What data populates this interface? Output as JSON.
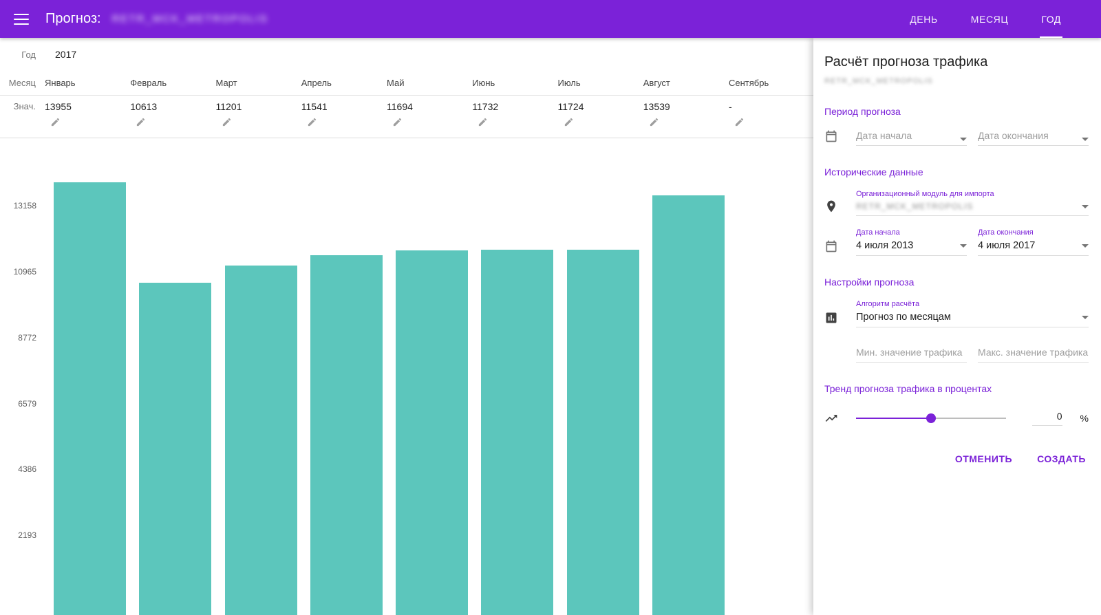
{
  "colors": {
    "primary": "#7B22D8",
    "bar": "#5CC6BC"
  },
  "app_bar": {
    "title": "Прогноз:",
    "title_blurred": "RETR_MCK_METROPOLIS",
    "tabs": [
      {
        "id": "day",
        "label": "ДЕНЬ",
        "active": false
      },
      {
        "id": "month",
        "label": "МЕСЯЦ",
        "active": false
      },
      {
        "id": "year",
        "label": "ГОД",
        "active": true
      }
    ]
  },
  "table": {
    "year_label": "Год",
    "year_value": "2017",
    "month_label": "Месяц",
    "value_label": "Знач.",
    "months": [
      "Январь",
      "Февраль",
      "Март",
      "Апрель",
      "Май",
      "Июнь",
      "Июль",
      "Август",
      "Сентябрь"
    ],
    "values": [
      "13955",
      "10613",
      "11201",
      "11541",
      "11694",
      "11732",
      "11724",
      "13539",
      "-"
    ]
  },
  "chart_data": {
    "type": "bar",
    "categories": [
      "Январь",
      "Февраль",
      "Март",
      "Апрель",
      "Май",
      "Июнь",
      "Июль",
      "Август"
    ],
    "values": [
      13955,
      10613,
      11201,
      11541,
      11694,
      11732,
      11724,
      13539
    ],
    "y_ticks": [
      13158,
      10965,
      8772,
      6579,
      4386,
      2193
    ],
    "ylim": [
      0,
      15400
    ],
    "bar_color": "#5CC6BC",
    "grid": false,
    "legend": false,
    "title": "",
    "xlabel": "",
    "ylabel": ""
  },
  "panel": {
    "title": "Расчёт прогноза трафика",
    "subtitle_blurred": "RETR_MCK_METROPOLIS",
    "period": {
      "heading": "Период прогноза",
      "start_placeholder": "Дата начала",
      "end_placeholder": "Дата окончания"
    },
    "historical": {
      "heading": "Исторические данные",
      "org_label": "Организационный модуль для импорта",
      "org_value_blurred": "RETR_MCK_METROPOLIS",
      "start_label": "Дата начала",
      "start_value": "4 июля 2013",
      "end_label": "Дата окончания",
      "end_value": "4 июля 2017"
    },
    "settings": {
      "heading": "Настройки прогноза",
      "algorithm_label": "Алгоритм расчёта",
      "algorithm_value": "Прогноз по месяцам",
      "min_placeholder": "Мин. значение трафика",
      "max_placeholder": "Макс. значение трафика"
    },
    "trend": {
      "heading": "Тренд прогноза трафика в процентах",
      "value": "0",
      "unit": "%"
    },
    "buttons": {
      "cancel": "ОТМЕНИТЬ",
      "create": "СОЗДАТЬ"
    }
  }
}
